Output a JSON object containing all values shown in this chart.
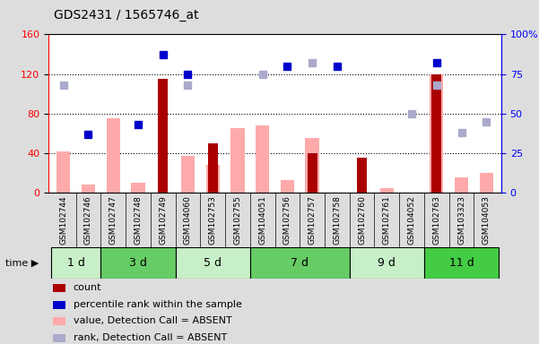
{
  "title": "GDS2431 / 1565746_at",
  "samples": [
    "GSM102744",
    "GSM102746",
    "GSM102747",
    "GSM102748",
    "GSM102749",
    "GSM104060",
    "GSM102753",
    "GSM102755",
    "GSM104051",
    "GSM102756",
    "GSM102757",
    "GSM102758",
    "GSM102760",
    "GSM102761",
    "GSM104052",
    "GSM102763",
    "GSM103323",
    "GSM104053"
  ],
  "time_groups": [
    {
      "label": "1 d",
      "start": 0,
      "end": 2,
      "color": "#c8f0c8"
    },
    {
      "label": "3 d",
      "start": 2,
      "end": 5,
      "color": "#66cc66"
    },
    {
      "label": "5 d",
      "start": 5,
      "end": 8,
      "color": "#c8f0c8"
    },
    {
      "label": "7 d",
      "start": 8,
      "end": 12,
      "color": "#66cc66"
    },
    {
      "label": "9 d",
      "start": 12,
      "end": 15,
      "color": "#c8f0c8"
    },
    {
      "label": "11 d",
      "start": 15,
      "end": 18,
      "color": "#44cc44"
    }
  ],
  "count_values": [
    null,
    null,
    null,
    null,
    115,
    null,
    50,
    null,
    null,
    null,
    40,
    null,
    35,
    null,
    null,
    120,
    null,
    null
  ],
  "percentile_values": [
    null,
    37,
    null,
    43,
    87,
    75,
    null,
    null,
    null,
    80,
    null,
    80,
    null,
    null,
    null,
    82,
    null,
    null
  ],
  "bar_absent_values": [
    42,
    8,
    75,
    10,
    null,
    37,
    28,
    65,
    68,
    13,
    55,
    null,
    null,
    5,
    null,
    120,
    15,
    20
  ],
  "rank_absent_values": [
    68,
    null,
    null,
    null,
    null,
    68,
    null,
    null,
    75,
    null,
    82,
    null,
    null,
    null,
    50,
    68,
    38,
    45
  ],
  "ylim_left": [
    0,
    160
  ],
  "ylim_right": [
    0,
    100
  ],
  "yticks_left": [
    0,
    40,
    80,
    120,
    160
  ],
  "yticks_right": [
    0,
    25,
    50,
    75,
    100
  ],
  "ytick_labels_right": [
    "0",
    "25",
    "50",
    "75",
    "100%"
  ],
  "color_count": "#aa0000",
  "color_percentile": "#0000cc",
  "color_bar_absent": "#ffaaaa",
  "color_rank_absent": "#aaaacc",
  "bg_color": "#dddddd",
  "plot_bg": "#ffffff",
  "xlabel_bg": "#cccccc"
}
